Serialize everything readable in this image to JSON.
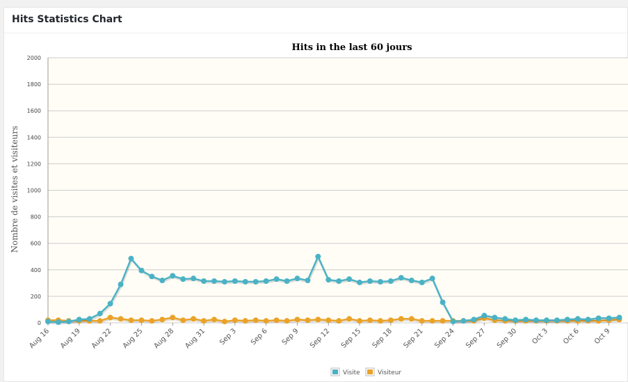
{
  "panel": {
    "title": "Hits Statistics Chart"
  },
  "colors": {
    "visite": "#4bb2c5",
    "visiteur": "#eaa228",
    "plot_bg": "#fffdf6",
    "grid": "#cccccc"
  },
  "chart_data": {
    "type": "line",
    "title": "Hits in the last 60 jours",
    "xlabel": "",
    "ylabel": "Nombre de visites et visiteurs",
    "ylim": [
      0,
      2000
    ],
    "yticks": [
      0,
      200,
      400,
      600,
      800,
      1000,
      1200,
      1400,
      1600,
      1800,
      2000
    ],
    "grid": true,
    "legend_position": "bottom-center",
    "x_tick_labels": [
      "Aug 16",
      "Aug 19",
      "Aug 22",
      "Aug 25",
      "Aug 28",
      "Aug 31",
      "Sep 3",
      "Sep 6",
      "Sep 9",
      "Sep 12",
      "Sep 15",
      "Sep 18",
      "Sep 21",
      "Sep 24",
      "Sep 27",
      "Sep 30",
      "Oct 3",
      "Oct 6",
      "Oct 9"
    ],
    "series": [
      {
        "name": "Visite",
        "values": [
          10,
          5,
          10,
          25,
          30,
          70,
          145,
          290,
          485,
          395,
          350,
          320,
          355,
          330,
          335,
          315,
          315,
          310,
          315,
          310,
          310,
          315,
          330,
          315,
          335,
          320,
          500,
          325,
          315,
          330,
          305,
          315,
          310,
          315,
          340,
          320,
          305,
          335,
          155,
          10,
          15,
          25,
          55,
          40,
          30,
          20,
          25,
          20,
          20,
          20,
          25,
          30,
          25,
          35,
          35,
          40
        ]
      },
      {
        "name": "Visiteur",
        "values": [
          20,
          20,
          15,
          15,
          15,
          15,
          40,
          30,
          20,
          20,
          15,
          25,
          40,
          20,
          30,
          15,
          25,
          10,
          20,
          15,
          20,
          15,
          20,
          15,
          25,
          20,
          25,
          20,
          15,
          30,
          15,
          20,
          15,
          20,
          30,
          30,
          15,
          15,
          15,
          15,
          15,
          15,
          35,
          20,
          15,
          15,
          15,
          15,
          15,
          15,
          15,
          15,
          15,
          15,
          20,
          25
        ]
      }
    ]
  }
}
